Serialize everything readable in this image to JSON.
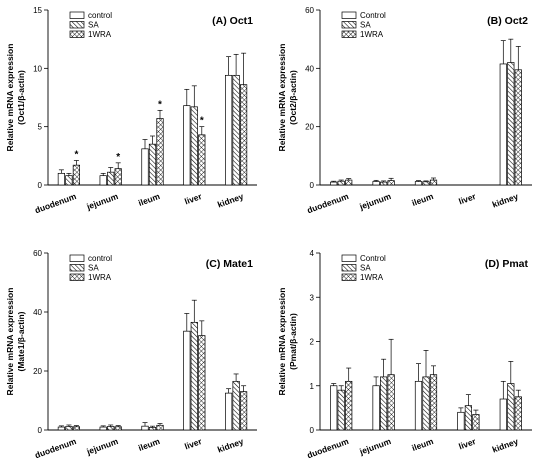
{
  "chart_data": [
    {
      "type": "bar",
      "title": "(A) Oct1",
      "ylabel": "Relative mRNA expression",
      "ylabel2": "(Oct1/β-actin)",
      "categories": [
        "duodenum",
        "jejunum",
        "ileum",
        "liver",
        "kidney"
      ],
      "ylim": [
        0,
        15
      ],
      "yticks": [
        0,
        5,
        10,
        15
      ],
      "legend_position": "top-left",
      "series": [
        {
          "name": "control",
          "values": [
            1.0,
            0.8,
            3.1,
            6.8,
            9.4
          ],
          "errors": [
            0.3,
            0.2,
            0.8,
            1.4,
            1.6
          ]
        },
        {
          "name": "SA",
          "values": [
            0.8,
            1.1,
            3.5,
            6.7,
            9.4
          ],
          "errors": [
            0.2,
            0.4,
            0.7,
            1.8,
            1.8
          ]
        },
        {
          "name": "1WRA",
          "values": [
            1.7,
            1.4,
            5.7,
            4.3,
            8.6
          ],
          "errors": [
            0.4,
            0.5,
            0.7,
            0.7,
            2.7
          ]
        }
      ],
      "annotations": [
        {
          "text": "*",
          "category": 0,
          "series": 2
        },
        {
          "text": "*",
          "category": 1,
          "series": 2
        },
        {
          "text": "*",
          "category": 2,
          "series": 2
        },
        {
          "text": "*",
          "category": 3,
          "series": 2
        }
      ]
    },
    {
      "type": "bar",
      "title": "(B) Oct2",
      "ylabel": "Relative mRNA expression",
      "ylabel2": "(Oct2/β-actin)",
      "categories": [
        "duodenum",
        "jejunum",
        "ileum",
        "liver",
        "kidney"
      ],
      "ylim": [
        0,
        60
      ],
      "yticks": [
        0,
        20,
        40,
        60
      ],
      "legend_position": "top-left",
      "series": [
        {
          "name": "Control",
          "values": [
            1.0,
            1.2,
            1.2,
            0.0,
            41.5
          ],
          "errors": [
            0.3,
            0.4,
            0.3,
            0.0,
            8.0
          ]
        },
        {
          "name": "SA",
          "values": [
            1.3,
            1.0,
            1.1,
            0.0,
            42.0
          ],
          "errors": [
            0.4,
            0.4,
            0.3,
            0.0,
            8.0
          ]
        },
        {
          "name": "1WRA",
          "values": [
            1.7,
            1.5,
            1.7,
            0.0,
            39.5
          ],
          "errors": [
            0.5,
            0.8,
            0.7,
            0.0,
            8.0
          ]
        }
      ],
      "annotations": []
    },
    {
      "type": "bar",
      "title": "(C) Mate1",
      "ylabel": "Relative mRNA expression",
      "ylabel2": "(Mate1/β-actin)",
      "categories": [
        "duodenum",
        "jejunum",
        "ileum",
        "liver",
        "kidney"
      ],
      "ylim": [
        0,
        60
      ],
      "yticks": [
        0,
        20,
        40,
        60
      ],
      "legend_position": "top-left",
      "series": [
        {
          "name": "control",
          "values": [
            1.0,
            1.0,
            1.3,
            33.5,
            12.5
          ],
          "errors": [
            0.4,
            0.4,
            1.2,
            6.0,
            1.5
          ]
        },
        {
          "name": "SA",
          "values": [
            1.2,
            1.2,
            0.9,
            36.5,
            16.5
          ],
          "errors": [
            0.5,
            0.5,
            0.4,
            7.5,
            2.5
          ]
        },
        {
          "name": "1WRA",
          "values": [
            1.1,
            1.1,
            1.6,
            32.0,
            13.0
          ],
          "errors": [
            0.4,
            0.4,
            0.6,
            5.0,
            2.0
          ]
        }
      ],
      "annotations": []
    },
    {
      "type": "bar",
      "title": "(D) Pmat",
      "ylabel": "Relative mRNA expression",
      "ylabel2": "(Pmat/β-actin)",
      "categories": [
        "duodenum",
        "jejunum",
        "ileum",
        "liver",
        "kidney"
      ],
      "ylim": [
        0,
        4
      ],
      "yticks": [
        0,
        1,
        2,
        3,
        4
      ],
      "legend_position": "top-left",
      "series": [
        {
          "name": "Control",
          "values": [
            1.0,
            1.0,
            1.1,
            0.4,
            0.7
          ],
          "errors": [
            0.05,
            0.2,
            0.4,
            0.1,
            0.4
          ]
        },
        {
          "name": "SA",
          "values": [
            0.9,
            1.2,
            1.2,
            0.55,
            1.05
          ],
          "errors": [
            0.1,
            0.4,
            0.6,
            0.25,
            0.5
          ]
        },
        {
          "name": "1WRA",
          "values": [
            1.1,
            1.25,
            1.25,
            0.35,
            0.75
          ],
          "errors": [
            0.3,
            0.8,
            0.2,
            0.1,
            0.15
          ]
        }
      ],
      "annotations": []
    }
  ],
  "colors": {
    "bar_fill": "#ffffff",
    "stroke": "#000000",
    "hatch": "#000000"
  }
}
